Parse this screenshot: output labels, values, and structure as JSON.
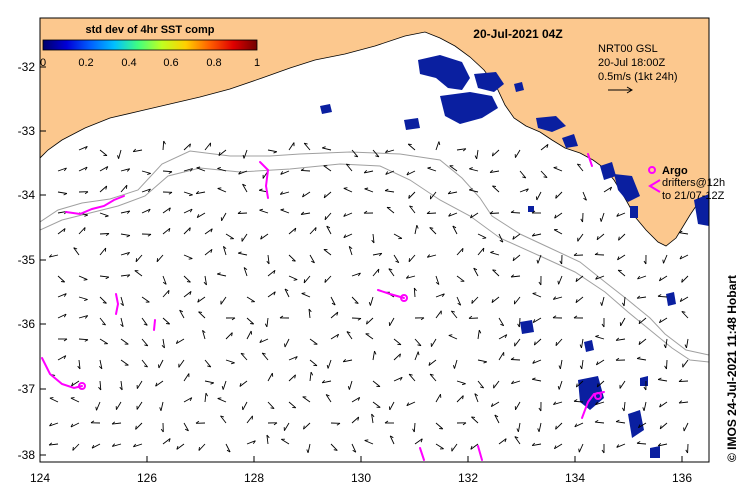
{
  "map": {
    "title": "20-Jul-2021 04Z",
    "colorbar": {
      "title": "std dev of 4hr SST comp",
      "ticks": [
        "0",
        "0.2",
        "0.4",
        "0.6",
        "0.8",
        "1"
      ],
      "colors": [
        "#00006a",
        "#0000d8",
        "#0060ff",
        "#00c0ff",
        "#40ff80",
        "#c0ff20",
        "#ffd000",
        "#ff6000",
        "#e00000",
        "#700000"
      ]
    },
    "current_info": {
      "line1": "NRT00 GSL",
      "line2": "20-Jul 18:00Z",
      "line3": "0.5m/s (1kt 24h)"
    },
    "legend": {
      "argo_label": "Argo",
      "drifters_line1": "drifters@12h",
      "drifters_line2": "to 21/07-12Z"
    },
    "stamp": "©  IMOS 24-Jul-2021 11:48 Hobart",
    "lat_labels": [
      "-32",
      "-33",
      "-34",
      "-35",
      "-36",
      "-37",
      "-38"
    ],
    "lon_labels": [
      "124",
      "126",
      "128",
      "130",
      "132",
      "134",
      "136"
    ],
    "colors": {
      "land": "#fcc88e",
      "coast": "#000000",
      "isobath": "#a0a0a0",
      "argo": "#ff00ff",
      "sst_patch": "#0a1fa0",
      "arrow": "#000000"
    }
  }
}
